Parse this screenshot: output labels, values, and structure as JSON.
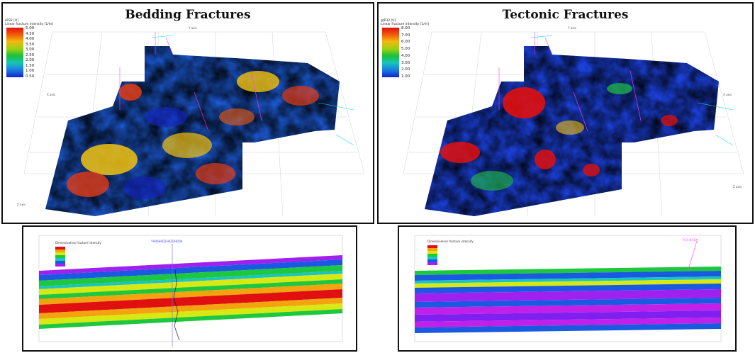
{
  "panels": {
    "bedding": {
      "title": "Bedding Fractures",
      "legend": {
        "title": "sP32 [U]",
        "subtitle": "Linear fracture intensity [1/m]",
        "ticks": [
          "5.00",
          "4.50",
          "4.00",
          "3.50",
          "3.00",
          "2.50",
          "2.00",
          "1.50",
          "1.00",
          "0.50"
        ]
      }
    },
    "tectonic": {
      "title": "Tectonic Fractures",
      "legend": {
        "title": "gtP32 [U]",
        "subtitle": "Linear fracture intensity [1/m]",
        "ticks": [
          "8.00",
          "7.00",
          "6.00",
          "5.00",
          "4.00",
          "3.00",
          "2.00",
          "1.00"
        ]
      }
    },
    "section_left": {
      "legend_title": "Dimensionless fracture intensity",
      "well_label": "YH06H0D2H4ZDH0D8"
    },
    "section_right": {
      "legend_title": "Dimensionless fracture intensity",
      "well_label": "H-3-4H-2X"
    }
  },
  "axes": {
    "y_axis": "Y axis",
    "x_axis": "X axis",
    "z_axis": "Z axis"
  }
}
